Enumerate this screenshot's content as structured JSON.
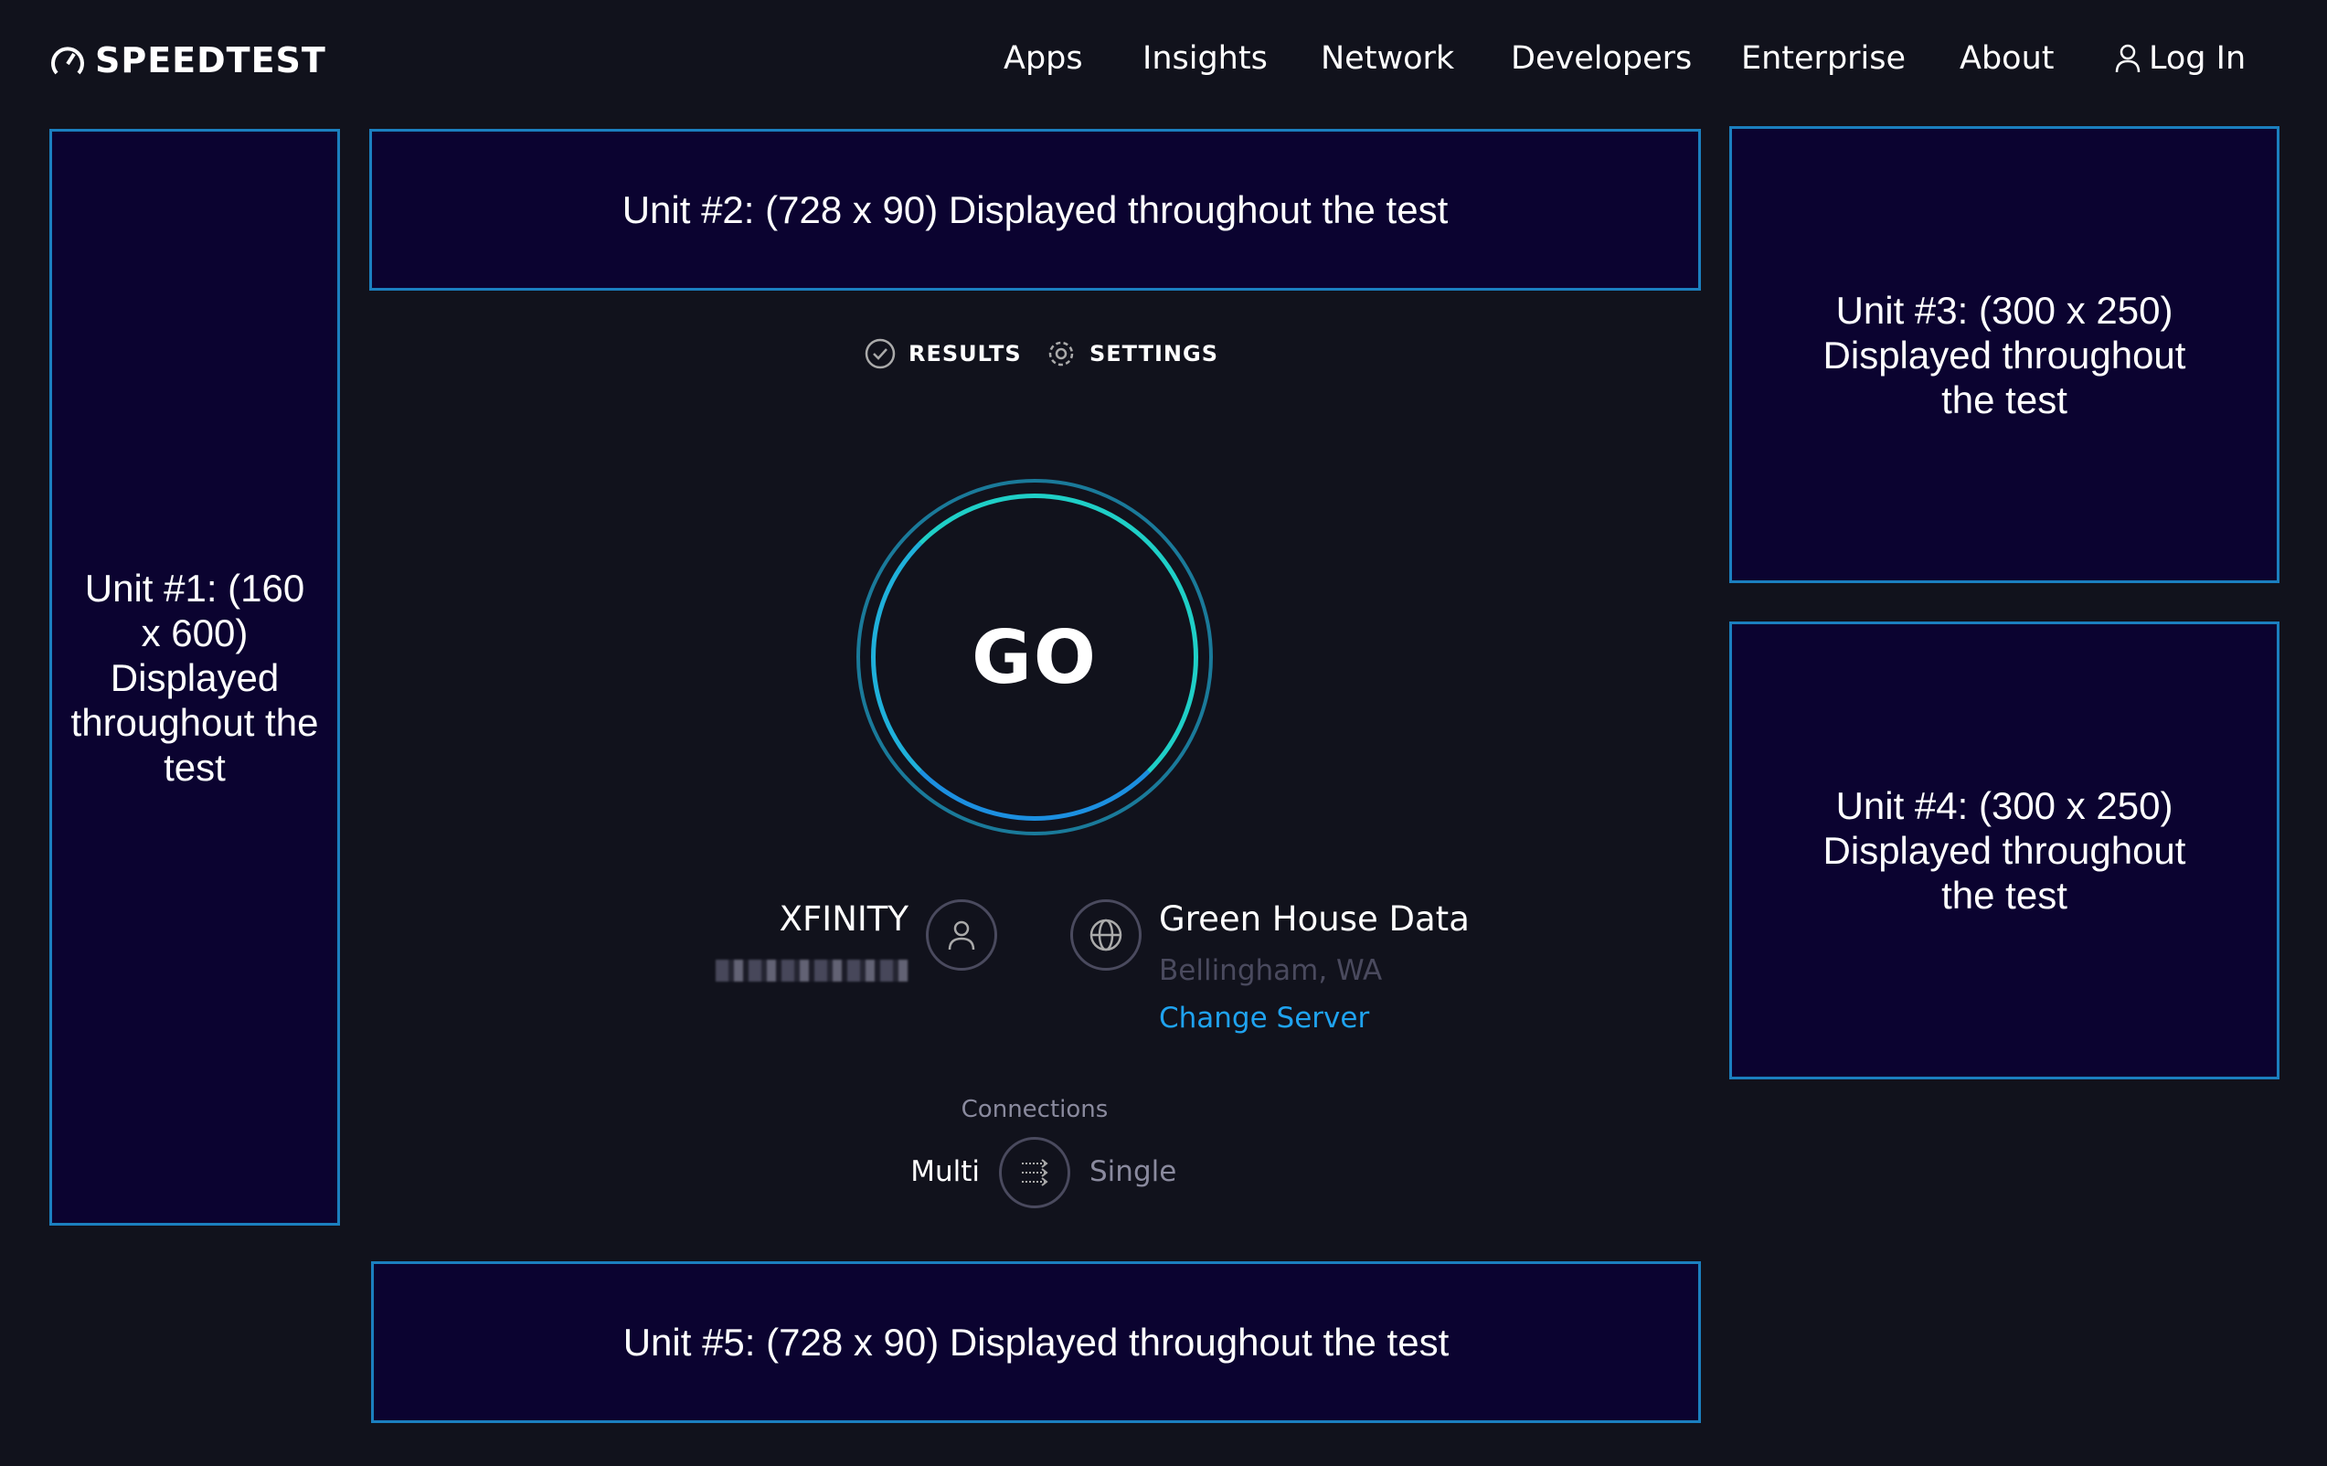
{
  "header": {
    "logo": "SPEEDTEST",
    "nav": [
      "Apps",
      "Insights",
      "Network",
      "Developers",
      "Enterprise",
      "About"
    ],
    "login": "Log In"
  },
  "ads": {
    "unit1": "Unit #1: (160 x 600) Displayed throughout the test",
    "unit2": "Unit #2: (728 x 90) Displayed throughout the test",
    "unit3": "Unit #3: (300 x 250) Displayed throughout the test",
    "unit4": "Unit #4: (300 x 250) Displayed throughout the test",
    "unit5": "Unit #5: (728 x 90) Displayed throughout the test"
  },
  "tabs": {
    "results": "RESULTS",
    "settings": "SETTINGS"
  },
  "go_label": "GO",
  "isp": {
    "name": "XFINITY",
    "icon": "user-icon"
  },
  "server": {
    "name": "Green House Data",
    "location": "Bellingham, WA",
    "change_label": "Change Server",
    "icon": "globe-icon"
  },
  "connections": {
    "label": "Connections",
    "multi": "Multi",
    "single": "Single",
    "selected": "Multi"
  },
  "colors": {
    "background": "#11121c",
    "ad_border": "#1b7fbf",
    "ad_fill": "#0b0330",
    "link": "#1fa3f0",
    "go_ring": "#1fd1c8"
  }
}
